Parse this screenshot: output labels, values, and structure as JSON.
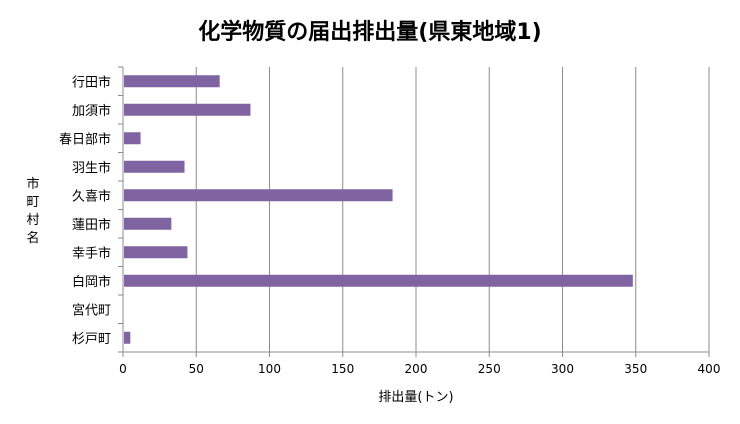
{
  "chart_data": {
    "type": "bar",
    "orientation": "horizontal",
    "title": "化学物質の届出排出量(県東地域1)",
    "xlabel": "排出量(トン)",
    "ylabel": "市町村名",
    "categories": [
      "行田市",
      "加須市",
      "春日部市",
      "羽生市",
      "久喜市",
      "蓮田市",
      "幸手市",
      "白岡市",
      "宮代町",
      "杉戸町"
    ],
    "values": [
      66,
      87,
      12,
      42,
      184,
      33,
      44,
      348,
      0,
      5
    ],
    "xlim": [
      0,
      400
    ],
    "xticks": [
      0,
      50,
      100,
      150,
      200,
      250,
      300,
      350,
      400
    ],
    "grid": "vertical",
    "legend": "none",
    "bar_color": "#8064a2"
  }
}
